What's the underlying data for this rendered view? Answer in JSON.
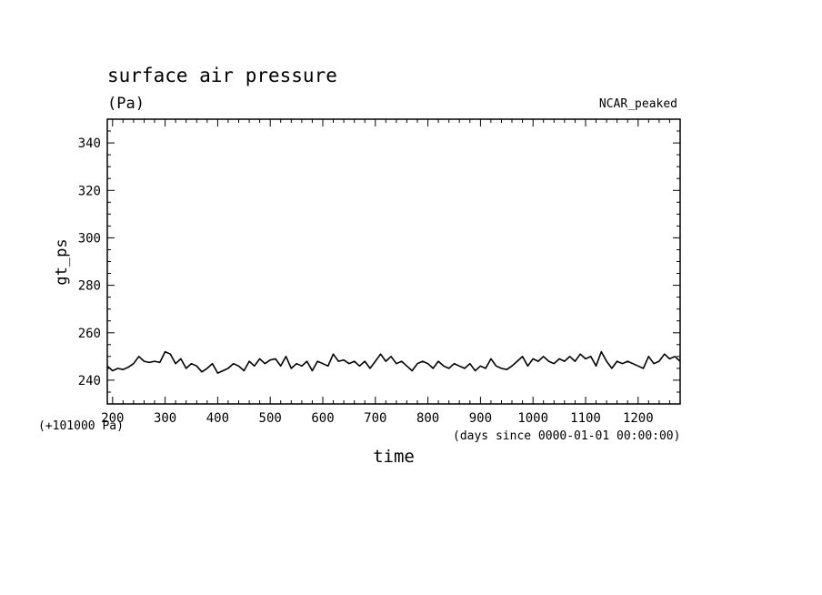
{
  "chart_data": {
    "type": "line",
    "title": "surface air pressure",
    "units": "(Pa)",
    "tag": "NCAR_peaked",
    "ylabel": "gt_ps",
    "xlabel": "time",
    "x_units": "(days since 0000-01-01 00:00:00)",
    "y_offset": "(+101000 Pa)",
    "xlim": [
      190,
      1280
    ],
    "ylim": [
      230,
      350
    ],
    "x_ticks": [
      200,
      300,
      400,
      500,
      600,
      700,
      800,
      900,
      1000,
      1100,
      1200
    ],
    "y_ticks": [
      240,
      260,
      280,
      300,
      320,
      340
    ],
    "grid": false,
    "series": [
      {
        "name": "gt_ps",
        "color": "#000000",
        "x": [
          190,
          200,
          210,
          220,
          230,
          240,
          250,
          260,
          270,
          280,
          290,
          300,
          310,
          320,
          330,
          340,
          350,
          360,
          370,
          380,
          390,
          400,
          410,
          420,
          430,
          440,
          450,
          460,
          470,
          480,
          490,
          500,
          510,
          520,
          530,
          540,
          550,
          560,
          570,
          580,
          590,
          600,
          610,
          620,
          630,
          640,
          650,
          660,
          670,
          680,
          690,
          700,
          710,
          720,
          730,
          740,
          750,
          760,
          770,
          780,
          790,
          800,
          810,
          820,
          830,
          840,
          850,
          860,
          870,
          880,
          890,
          900,
          910,
          920,
          930,
          940,
          950,
          960,
          970,
          980,
          990,
          1000,
          1010,
          1020,
          1030,
          1040,
          1050,
          1060,
          1070,
          1080,
          1090,
          1100,
          1110,
          1120,
          1130,
          1140,
          1150,
          1160,
          1170,
          1180,
          1190,
          1200,
          1210,
          1220,
          1230,
          1240,
          1250,
          1260,
          1270,
          1280
        ],
        "values": [
          246,
          244,
          245,
          244.5,
          245.5,
          247,
          250,
          248,
          247.5,
          248,
          247.5,
          252,
          251,
          247,
          249,
          245,
          247,
          246,
          243.5,
          245,
          247,
          243,
          244,
          245,
          247,
          246,
          244,
          248,
          246,
          249,
          247,
          248.5,
          249,
          246,
          250,
          245,
          247,
          246,
          248,
          244,
          248,
          247,
          246,
          251,
          248,
          248.5,
          247,
          248,
          246,
          248,
          245,
          248,
          251,
          248,
          250,
          247,
          248,
          246,
          244,
          247,
          248,
          247,
          245,
          248,
          246,
          245,
          247,
          246,
          245,
          247,
          244,
          246,
          245,
          249,
          246,
          245,
          244.5,
          246,
          248,
          250,
          246,
          249,
          248,
          250,
          248,
          247,
          249,
          248,
          250,
          248,
          251,
          249,
          250,
          246,
          252,
          248,
          245,
          248,
          247,
          248,
          247,
          246,
          245,
          250,
          247,
          248,
          251,
          249,
          250,
          248
        ]
      }
    ]
  }
}
